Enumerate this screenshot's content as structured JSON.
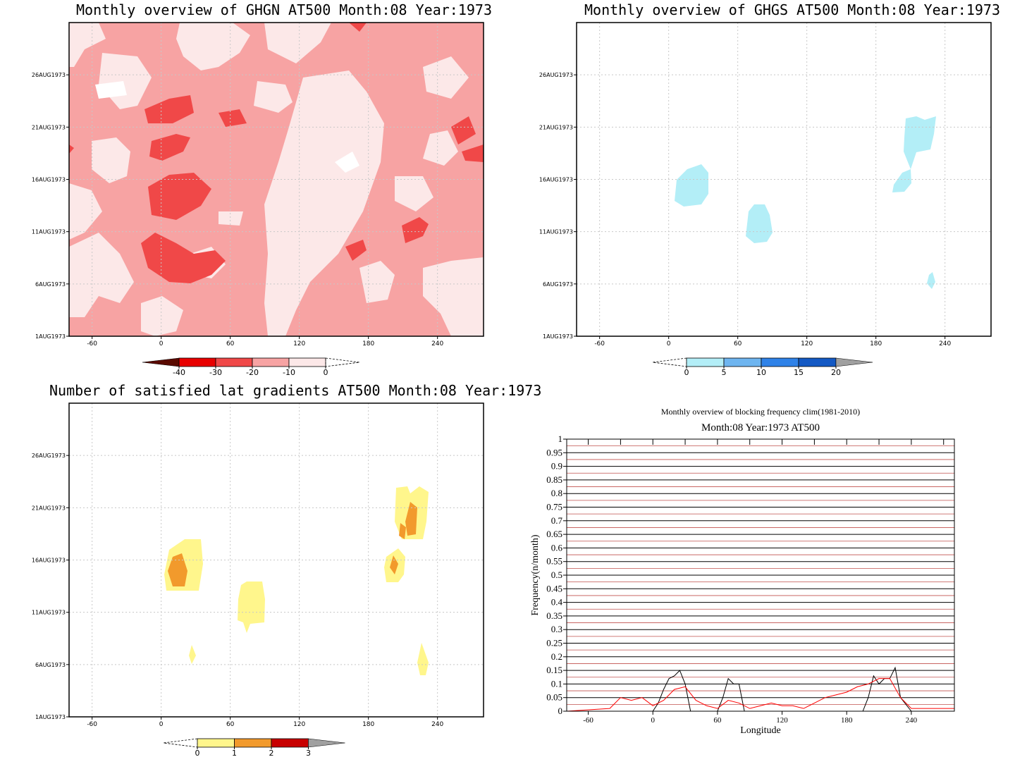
{
  "panels": {
    "ghgn": {
      "title": "Monthly overview of GHGN AT500 Month:08 Year:1973",
      "y_ticks": [
        "1AUG1973",
        "6AUG1973",
        "11AUG1973",
        "16AUG1973",
        "21AUG1973",
        "26AUG1973"
      ],
      "x_ticks": [
        "-60",
        "0",
        "60",
        "120",
        "180",
        "240"
      ],
      "colorbar": {
        "labels": [
          "-40",
          "-30",
          "-20",
          "-10",
          "0"
        ],
        "colors": [
          "#5a0a00",
          "#e80000",
          "#f04848",
          "#f7a3a3",
          "#fce8e8"
        ]
      },
      "colors": {
        "bg": "#f7a3a3",
        "light": "#fce8e8",
        "white": "#ffffff",
        "dark": "#f04848"
      }
    },
    "ghgs": {
      "title": "Monthly overview of GHGS AT500 Month:08 Year:1973",
      "y_ticks": [
        "1AUG1973",
        "6AUG1973",
        "11AUG1973",
        "16AUG1973",
        "21AUG1973",
        "26AUG1973"
      ],
      "x_ticks": [
        "-60",
        "0",
        "60",
        "120",
        "180",
        "240"
      ],
      "colorbar": {
        "labels": [
          "0",
          "5",
          "10",
          "15",
          "20"
        ],
        "colors": [
          "#b3eef7",
          "#6eb5f0",
          "#2f82e8",
          "#1459c4",
          "#a0a0a0"
        ]
      },
      "colors": {
        "blob": "#b3eef7"
      }
    },
    "lat": {
      "title": "Number of satisfied lat gradients AT500 Month:08 Year:1973",
      "y_ticks": [
        "1AUG1973",
        "6AUG1973",
        "11AUG1973",
        "16AUG1973",
        "21AUG1973",
        "26AUG1973"
      ],
      "x_ticks": [
        "-60",
        "0",
        "60",
        "120",
        "180",
        "240"
      ],
      "colorbar": {
        "labels": [
          "0",
          "1",
          "2",
          "3"
        ],
        "colors": [
          "#fff68c",
          "#f29a2c",
          "#c80000",
          "#a0a0a0"
        ]
      },
      "colors": {
        "yellow": "#fff68c",
        "orange": "#f29a2c"
      }
    },
    "freq": {
      "suptitle": "Monthly overview of blocking frequency clim(1981-2010)",
      "title": "Month:08 Year:1973  AT500",
      "xlabel": "Longitude",
      "ylabel": "Frequency(n/month)",
      "x_ticks": [
        "-60",
        "0",
        "60",
        "120",
        "180",
        "240"
      ],
      "y_ticks": [
        "0",
        "0.05",
        "0.1",
        "0.15",
        "0.2",
        "0.25",
        "0.3",
        "0.35",
        "0.4",
        "0.45",
        "0.5",
        "0.55",
        "0.6",
        "0.65",
        "0.7",
        "0.75",
        "0.8",
        "0.85",
        "0.9",
        "0.95",
        "1"
      ]
    }
  },
  "chart_data": [
    {
      "type": "heatmap",
      "title": "Monthly overview of GHGN AT500 Month:08 Year:1973",
      "x_range": [
        -80,
        280
      ],
      "y_range": [
        "1AUG1973",
        "31AUG1973"
      ],
      "levels": [
        -40,
        -30,
        -20,
        -10,
        0
      ],
      "grid": true
    },
    {
      "type": "heatmap",
      "title": "Monthly overview of GHGS AT500 Month:08 Year:1973",
      "x_range": [
        -80,
        280
      ],
      "y_range": [
        "1AUG1973",
        "31AUG1973"
      ],
      "levels": [
        0,
        5,
        10,
        15,
        20
      ],
      "grid": true
    },
    {
      "type": "heatmap",
      "title": "Number of satisfied lat gradients AT500 Month:08 Year:1973",
      "x_range": [
        -80,
        280
      ],
      "y_range": [
        "1AUG1973",
        "31AUG1973"
      ],
      "levels": [
        0,
        1,
        2,
        3
      ],
      "grid": true
    },
    {
      "type": "line",
      "title": "Month:08 Year:1973  AT500",
      "xlabel": "Longitude",
      "ylabel": "Frequency(n/month)",
      "xlim": [
        -80,
        280
      ],
      "ylim": [
        0,
        1
      ],
      "series": [
        {
          "color": "#000000",
          "x": [
            -80,
            -2,
            0,
            5,
            10,
            15,
            20,
            25,
            30,
            35,
            40,
            60,
            65,
            70,
            75,
            80,
            85,
            195,
            200,
            205,
            210,
            215,
            220,
            225,
            230,
            240,
            280
          ],
          "y": [
            0,
            0,
            0,
            0.03,
            0.08,
            0.12,
            0.13,
            0.15,
            0.1,
            0,
            0,
            0,
            0.05,
            0.12,
            0.1,
            0.1,
            0,
            0,
            0.05,
            0.13,
            0.1,
            0.12,
            0.12,
            0.16,
            0.05,
            0,
            0
          ]
        },
        {
          "color": "#ff0000",
          "x": [
            -80,
            -40,
            -30,
            -20,
            -10,
            0,
            10,
            20,
            30,
            40,
            50,
            60,
            70,
            80,
            90,
            100,
            110,
            120,
            130,
            140,
            150,
            160,
            170,
            180,
            190,
            200,
            210,
            220,
            230,
            240,
            260,
            280
          ],
          "y": [
            0,
            0.01,
            0.05,
            0.04,
            0.05,
            0.02,
            0.04,
            0.08,
            0.09,
            0.04,
            0.02,
            0.01,
            0.04,
            0.03,
            0.01,
            0.02,
            0.03,
            0.02,
            0.02,
            0.01,
            0.03,
            0.05,
            0.06,
            0.07,
            0.09,
            0.1,
            0.12,
            0.12,
            0.05,
            0.01,
            0.01,
            0.01
          ]
        }
      ]
    }
  ]
}
